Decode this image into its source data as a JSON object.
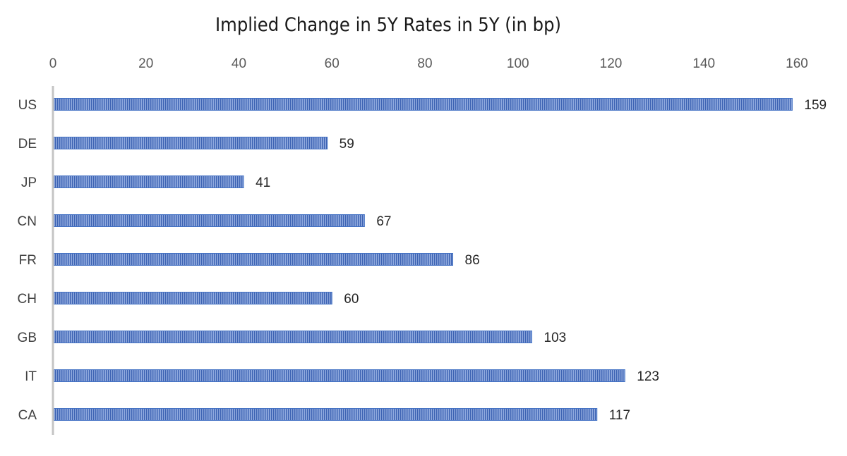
{
  "chart_data": {
    "type": "bar",
    "orientation": "horizontal",
    "title": "Implied Change in 5Y Rates in 5Y (in bp)",
    "xlabel": "",
    "ylabel": "",
    "categories": [
      "US",
      "DE",
      "JP",
      "CN",
      "FR",
      "CH",
      "GB",
      "IT",
      "CA"
    ],
    "values": [
      159,
      59,
      41,
      67,
      86,
      60,
      103,
      123,
      117
    ],
    "value_axis": {
      "position": "top",
      "min": 0,
      "max": 160,
      "ticks": [
        0,
        20,
        40,
        60,
        80,
        100,
        120,
        140,
        160
      ]
    },
    "grid": false,
    "legend": "none",
    "data_labels": true,
    "bar_color": "#4472C4",
    "bar_pattern": "vertical-hatch"
  }
}
